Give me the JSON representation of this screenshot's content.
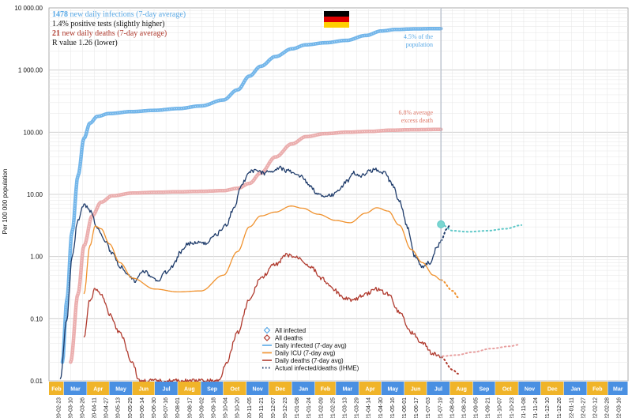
{
  "chart_data": {
    "type": "line",
    "y_scale": "log",
    "ylim": [
      0.01,
      10000
    ],
    "ylabel": "Per 100 000 population",
    "y_ticks": [
      "10 000.00",
      "1 000.00",
      "100.00",
      "10.00",
      "1.00",
      "0.10",
      "0.01"
    ],
    "x_range": [
      "2020-02-10",
      "2022-03-28"
    ],
    "last_actual_date": "2021-07-20",
    "info": [
      {
        "bold": "1478",
        "text": " new daily infections (7-day average)",
        "color": "#5aa9e6"
      },
      {
        "bold": "",
        "text": "1.4% positive tests (slightly higher)",
        "color": "#111111"
      },
      {
        "bold": "21",
        "text": " new daily deaths (7-day average)",
        "color": "#b03a2e"
      },
      {
        "bold": "",
        "text": "R value 1.26 (lower)",
        "color": "#111111"
      }
    ],
    "annotations": {
      "infected": [
        "4.5% of the",
        "population"
      ],
      "deaths": [
        "6.8% average",
        "excess death"
      ]
    },
    "legend": [
      {
        "label": "All infected",
        "marker": "diamond",
        "color": "#5aa9e6"
      },
      {
        "label": "All deaths",
        "marker": "diamond",
        "color": "#b03a2e"
      },
      {
        "label": "Daily infected (7-day avg)",
        "marker": "line",
        "color": "#5aa9e6"
      },
      {
        "label": "Daily ICU (7-day avg)",
        "marker": "line",
        "color": "#f0922e"
      },
      {
        "label": "Daily deaths (7-day avg)",
        "marker": "line",
        "color": "#b03a2e"
      },
      {
        "label": "Actual infected/deaths (IHME)",
        "marker": "dots",
        "color": "#1f3c6b"
      }
    ],
    "months": [
      "Feb",
      "Mar",
      "Apr",
      "May",
      "Jun",
      "Jul",
      "Aug",
      "Sep",
      "Oct",
      "Nov",
      "Dec",
      "Jan",
      "Feb",
      "Mar",
      "Apr",
      "May",
      "Jun",
      "Jul",
      "Aug",
      "Sep",
      "Oct",
      "Nov",
      "Dec",
      "Jan",
      "Feb",
      "Mar"
    ],
    "month_colors": [
      "#f0b429",
      "#4a90e2"
    ],
    "date_ticks": [
      "2020-02-23",
      "2020-03-10",
      "2020-03-26",
      "2020-04-11",
      "2020-04-27",
      "2020-05-13",
      "2020-05-29",
      "2020-06-14",
      "2020-06-30",
      "2020-07-16",
      "2020-08-01",
      "2020-08-17",
      "2020-09-02",
      "2020-09-18",
      "2020-10-04",
      "2020-10-20",
      "2020-11-05",
      "2020-11-21",
      "2020-12-07",
      "2020-12-23",
      "2021-01-08",
      "2021-01-24",
      "2021-02-09",
      "2021-02-25",
      "2021-03-13",
      "2021-03-29",
      "2021-04-14",
      "2021-04-30",
      "2021-05-16",
      "2021-06-01",
      "2021-06-17",
      "2021-07-03",
      "2021-07-19",
      "2021-08-04",
      "2021-08-20",
      "2021-09-05",
      "2021-09-21",
      "2021-10-07",
      "2021-10-23",
      "2021-11-08",
      "2021-11-24",
      "2021-12-10",
      "2021-12-26",
      "2022-01-11",
      "2022-01-27",
      "2022-02-12",
      "2022-02-28",
      "2022-03-16"
    ],
    "series": [
      {
        "name": "All infected",
        "color": "#5aa9e6",
        "style": "thick",
        "points": [
          [
            "2020-02-28",
            0.02
          ],
          [
            "2020-03-05",
            0.2
          ],
          [
            "2020-03-12",
            2.5
          ],
          [
            "2020-03-20",
            20
          ],
          [
            "2020-03-28",
            80
          ],
          [
            "2020-04-05",
            140
          ],
          [
            "2020-04-15",
            180
          ],
          [
            "2020-05-01",
            200
          ],
          [
            "2020-06-01",
            215
          ],
          [
            "2020-07-01",
            225
          ],
          [
            "2020-08-01",
            240
          ],
          [
            "2020-09-01",
            265
          ],
          [
            "2020-10-01",
            330
          ],
          [
            "2020-10-20",
            480
          ],
          [
            "2020-11-05",
            800
          ],
          [
            "2020-11-20",
            1150
          ],
          [
            "2020-12-10",
            1650
          ],
          [
            "2021-01-01",
            2200
          ],
          [
            "2021-01-20",
            2550
          ],
          [
            "2021-02-15",
            2750
          ],
          [
            "2021-03-15",
            3000
          ],
          [
            "2021-04-10",
            3600
          ],
          [
            "2021-05-01",
            4250
          ],
          [
            "2021-05-20",
            4500
          ],
          [
            "2021-06-15",
            4600
          ],
          [
            "2021-07-20",
            4650
          ]
        ]
      },
      {
        "name": "All deaths",
        "color": "#e8a0a0",
        "style": "thick",
        "points": [
          [
            "2020-03-10",
            0.02
          ],
          [
            "2020-03-20",
            0.25
          ],
          [
            "2020-03-28",
            1.5
          ],
          [
            "2020-04-08",
            4.5
          ],
          [
            "2020-04-20",
            7.5
          ],
          [
            "2020-05-05",
            9.5
          ],
          [
            "2020-06-01",
            10.5
          ],
          [
            "2020-07-01",
            10.8
          ],
          [
            "2020-08-01",
            11
          ],
          [
            "2020-09-01",
            11.2
          ],
          [
            "2020-10-01",
            11.5
          ],
          [
            "2020-10-20",
            12.5
          ],
          [
            "2020-11-05",
            15
          ],
          [
            "2020-11-20",
            22
          ],
          [
            "2020-12-10",
            40
          ],
          [
            "2021-01-01",
            65
          ],
          [
            "2021-01-20",
            85
          ],
          [
            "2021-02-15",
            95
          ],
          [
            "2021-03-15",
            100
          ],
          [
            "2021-04-15",
            103
          ],
          [
            "2021-05-15",
            108
          ],
          [
            "2021-06-15",
            110
          ],
          [
            "2021-07-20",
            111
          ]
        ]
      },
      {
        "name": "Daily infected (7-day avg)",
        "color": "#1f3c6b",
        "style": "noisy",
        "points": [
          [
            "2020-02-25",
            0.01
          ],
          [
            "2020-03-05",
            0.1
          ],
          [
            "2020-03-12",
            1
          ],
          [
            "2020-03-20",
            4
          ],
          [
            "2020-03-28",
            6.8
          ],
          [
            "2020-04-05",
            5.5
          ],
          [
            "2020-04-15",
            3
          ],
          [
            "2020-04-25",
            1.8
          ],
          [
            "2020-05-05",
            1.1
          ],
          [
            "2020-05-15",
            0.7
          ],
          [
            "2020-05-25",
            0.5
          ],
          [
            "2020-06-05",
            0.4
          ],
          [
            "2020-06-15",
            0.6
          ],
          [
            "2020-06-25",
            0.5
          ],
          [
            "2020-07-05",
            0.4
          ],
          [
            "2020-07-15",
            0.55
          ],
          [
            "2020-07-25",
            0.7
          ],
          [
            "2020-08-05",
            1.2
          ],
          [
            "2020-08-15",
            1.6
          ],
          [
            "2020-08-25",
            1.7
          ],
          [
            "2020-09-05",
            1.6
          ],
          [
            "2020-09-20",
            2.2
          ],
          [
            "2020-10-05",
            3.2
          ],
          [
            "2020-10-15",
            6
          ],
          [
            "2020-10-25",
            14
          ],
          [
            "2020-11-05",
            23
          ],
          [
            "2020-11-15",
            24
          ],
          [
            "2020-11-25",
            22
          ],
          [
            "2020-12-05",
            24
          ],
          [
            "2020-12-15",
            27
          ],
          [
            "2020-12-25",
            24
          ],
          [
            "2021-01-05",
            22
          ],
          [
            "2021-01-15",
            19
          ],
          [
            "2021-01-25",
            14
          ],
          [
            "2021-02-05",
            10
          ],
          [
            "2021-02-15",
            9
          ],
          [
            "2021-02-25",
            10
          ],
          [
            "2021-03-05",
            12
          ],
          [
            "2021-03-15",
            16
          ],
          [
            "2021-03-25",
            22
          ],
          [
            "2021-04-05",
            20
          ],
          [
            "2021-04-15",
            24
          ],
          [
            "2021-04-25",
            25
          ],
          [
            "2021-05-05",
            22
          ],
          [
            "2021-05-15",
            15
          ],
          [
            "2021-05-25",
            8
          ],
          [
            "2021-06-05",
            3
          ],
          [
            "2021-06-15",
            1
          ],
          [
            "2021-06-25",
            0.7
          ],
          [
            "2021-07-05",
            0.8
          ],
          [
            "2021-07-15",
            1.4
          ],
          [
            "2021-07-20",
            1.8
          ]
        ]
      },
      {
        "name": "Daily ICU (7-day avg)",
        "color": "#f0922e",
        "style": "smooth",
        "points": [
          [
            "2020-03-28",
            0.25
          ],
          [
            "2020-04-05",
            1.5
          ],
          [
            "2020-04-12",
            3.1
          ],
          [
            "2020-04-20",
            2.8
          ],
          [
            "2020-05-01",
            1.6
          ],
          [
            "2020-05-15",
            0.8
          ],
          [
            "2020-06-01",
            0.45
          ],
          [
            "2020-07-01",
            0.3
          ],
          [
            "2020-08-01",
            0.27
          ],
          [
            "2020-09-01",
            0.28
          ],
          [
            "2020-10-01",
            0.5
          ],
          [
            "2020-10-20",
            1.2
          ],
          [
            "2020-11-05",
            3
          ],
          [
            "2020-11-20",
            4.5
          ],
          [
            "2020-12-10",
            5.2
          ],
          [
            "2020-12-31",
            6.5
          ],
          [
            "2021-01-15",
            6
          ],
          [
            "2021-02-05",
            4.8
          ],
          [
            "2021-03-01",
            3.8
          ],
          [
            "2021-03-20",
            3.5
          ],
          [
            "2021-04-10",
            5
          ],
          [
            "2021-04-25",
            6.1
          ],
          [
            "2021-05-10",
            5.4
          ],
          [
            "2021-05-25",
            3.2
          ],
          [
            "2021-06-10",
            1.3
          ],
          [
            "2021-06-25",
            0.8
          ],
          [
            "2021-07-10",
            0.5
          ],
          [
            "2021-07-20",
            0.42
          ]
        ]
      },
      {
        "name": "Daily deaths (7-day avg)",
        "color": "#b03a2e",
        "style": "noisy",
        "points": [
          [
            "2020-03-28",
            0.05
          ],
          [
            "2020-04-05",
            0.2
          ],
          [
            "2020-04-12",
            0.3
          ],
          [
            "2020-04-20",
            0.25
          ],
          [
            "2020-05-01",
            0.12
          ],
          [
            "2020-05-15",
            0.06
          ],
          [
            "2020-06-01",
            0.02
          ],
          [
            "2020-06-10",
            0.01
          ],
          [
            "2020-09-25",
            0.01
          ],
          [
            "2020-10-05",
            0.02
          ],
          [
            "2020-10-20",
            0.06
          ],
          [
            "2020-11-05",
            0.2
          ],
          [
            "2020-11-20",
            0.45
          ],
          [
            "2020-12-10",
            0.75
          ],
          [
            "2020-12-25",
            1.05
          ],
          [
            "2021-01-10",
            0.95
          ],
          [
            "2021-01-25",
            0.7
          ],
          [
            "2021-02-10",
            0.45
          ],
          [
            "2021-02-25",
            0.3
          ],
          [
            "2021-03-10",
            0.22
          ],
          [
            "2021-03-25",
            0.2
          ],
          [
            "2021-04-10",
            0.25
          ],
          [
            "2021-04-25",
            0.3
          ],
          [
            "2021-05-10",
            0.25
          ],
          [
            "2021-05-25",
            0.13
          ],
          [
            "2021-06-10",
            0.06
          ],
          [
            "2021-06-25",
            0.04
          ],
          [
            "2021-07-10",
            0.027
          ],
          [
            "2021-07-20",
            0.024
          ]
        ]
      }
    ],
    "projections": [
      {
        "name": "IHME infected",
        "color": "#5fc8c8",
        "points": [
          [
            "2021-07-20",
            3.3
          ],
          [
            "2021-08-05",
            2.6
          ],
          [
            "2021-08-25",
            2.5
          ],
          [
            "2021-09-20",
            2.6
          ],
          [
            "2021-10-15",
            2.8
          ],
          [
            "2021-11-05",
            3.2
          ]
        ]
      },
      {
        "name": "IHME deaths",
        "color": "#e8a0a0",
        "points": [
          [
            "2021-07-22",
            0.025
          ],
          [
            "2021-08-10",
            0.026
          ],
          [
            "2021-09-01",
            0.029
          ],
          [
            "2021-09-25",
            0.033
          ],
          [
            "2021-10-20",
            0.036
          ],
          [
            "2021-11-01",
            0.038
          ]
        ]
      },
      {
        "name": "IHME daily infected",
        "color": "#1f3c6b",
        "points": [
          [
            "2021-07-20",
            1.8
          ],
          [
            "2021-07-28",
            2.8
          ],
          [
            "2021-08-01",
            3.2
          ]
        ]
      },
      {
        "name": "IHME ICU",
        "color": "#f0922e",
        "points": [
          [
            "2021-07-20",
            0.42
          ],
          [
            "2021-08-05",
            0.28
          ],
          [
            "2021-08-12",
            0.22
          ]
        ]
      },
      {
        "name": "IHME deaths daily",
        "color": "#b03a2e",
        "points": [
          [
            "2021-07-20",
            0.024
          ],
          [
            "2021-08-05",
            0.015
          ],
          [
            "2021-08-12",
            0.013
          ]
        ]
      }
    ],
    "colors": {
      "flag_black": "#000000",
      "flag_red": "#dd0000",
      "flag_gold": "#ffce00",
      "grid": "#e6e6e6",
      "grid_major": "#c8c8c8"
    }
  }
}
